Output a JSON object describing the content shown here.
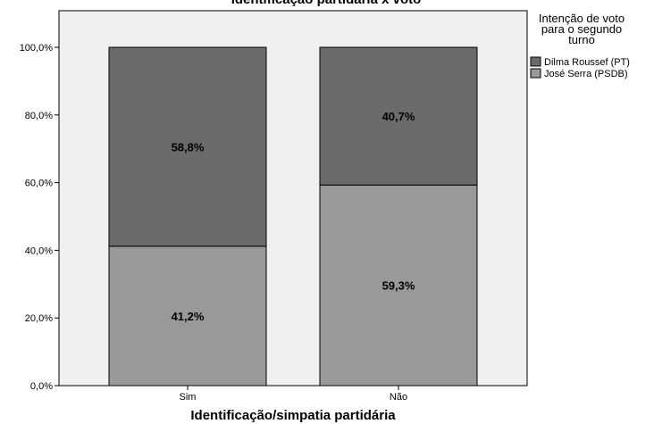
{
  "chart_data": {
    "type": "bar",
    "stacked": true,
    "title": "Identificação partidária x voto",
    "xlabel": "Identificação/simpatia partidária",
    "ylabel": "",
    "categories": [
      "Sim",
      "Não"
    ],
    "series": [
      {
        "name": "José Serra (PSDB)",
        "values": [
          41.2,
          59.3
        ],
        "labels": [
          "41,2%",
          "59,3%"
        ],
        "color": "#999999"
      },
      {
        "name": "Dilma Roussef (PT)",
        "values": [
          58.8,
          40.7
        ],
        "labels": [
          "58,8%",
          "40,7%"
        ],
        "color": "#6b6b6b"
      }
    ],
    "ylim": [
      0,
      100
    ],
    "yticks": [
      0,
      20,
      40,
      60,
      80,
      100
    ],
    "ytick_labels": [
      "0,0%",
      "20,0%",
      "40,0%",
      "60,0%",
      "80,0%",
      "100,0%"
    ],
    "grid": false,
    "legend": {
      "title_lines": [
        "Intenção de voto",
        "para o segundo",
        "turno"
      ],
      "placement": "right"
    },
    "plot_background": "#f0f0f0"
  }
}
